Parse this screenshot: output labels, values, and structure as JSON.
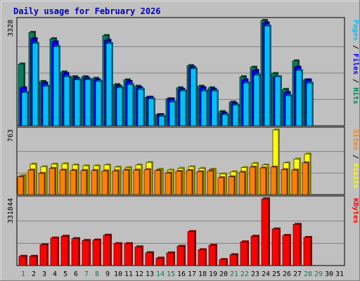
{
  "title": "Daily usage for February 2026",
  "days": [
    "1",
    "2",
    "3",
    "4",
    "5",
    "6",
    "7",
    "8",
    "9",
    "10",
    "11",
    "12",
    "13",
    "14",
    "15",
    "16",
    "17",
    "18",
    "19",
    "20",
    "21",
    "22",
    "23",
    "24",
    "25",
    "26",
    "27",
    "28",
    "29",
    "30",
    "31"
  ],
  "weekend_days": [
    1,
    7,
    8,
    14,
    15,
    21,
    22,
    28,
    29
  ],
  "colors": {
    "hits": "#00805C",
    "files": "#0000FF",
    "pages": "#00C0FF",
    "visits": "#FFFF00",
    "sites": "#FF8000",
    "kbytes": "#FF0000",
    "title": "#0000C0",
    "weekend": "#00805C",
    "weekday": "#000000"
  },
  "chart_data": [
    {
      "type": "bar",
      "title": "Pages / Files / Hits",
      "ymax_label": "3328",
      "ylim": [
        0,
        3328
      ],
      "categories": [
        "1",
        "2",
        "3",
        "4",
        "5",
        "6",
        "7",
        "8",
        "9",
        "10",
        "11",
        "12",
        "13",
        "14",
        "15",
        "16",
        "17",
        "18",
        "19",
        "20",
        "21",
        "22",
        "23",
        "24",
        "25",
        "26",
        "27",
        "28",
        "29",
        "30",
        "31"
      ],
      "series": [
        {
          "name": "Hits",
          "values": [
            1950,
            2950,
            1400,
            2750,
            1700,
            1550,
            1550,
            1500,
            2850,
            1300,
            1450,
            1250,
            900,
            350,
            850,
            1200,
            1900,
            1250,
            1200,
            450,
            750,
            1550,
            1850,
            3328,
            1650,
            1150,
            2050,
            1450,
            null,
            null,
            null
          ]
        },
        {
          "name": "Files",
          "values": [
            1200,
            2750,
            1350,
            2650,
            1650,
            1500,
            1500,
            1450,
            2700,
            1250,
            1400,
            1200,
            900,
            350,
            850,
            1150,
            1850,
            1200,
            1150,
            400,
            700,
            1450,
            1750,
            3250,
            1550,
            1050,
            1850,
            1450,
            null,
            null,
            null
          ]
        },
        {
          "name": "Pages",
          "values": [
            1050,
            2600,
            1250,
            2500,
            1550,
            1450,
            1450,
            1400,
            2600,
            1200,
            1300,
            1150,
            850,
            300,
            750,
            1100,
            1800,
            1100,
            1100,
            350,
            650,
            1350,
            1600,
            3150,
            1550,
            950,
            1750,
            1350,
            null,
            null,
            null
          ]
        }
      ]
    },
    {
      "type": "bar",
      "title": "Sites / Visits",
      "ymax_label": "763",
      "ylim": [
        0,
        763
      ],
      "categories": [
        "1",
        "2",
        "3",
        "4",
        "5",
        "6",
        "7",
        "8",
        "9",
        "10",
        "11",
        "12",
        "13",
        "14",
        "15",
        "16",
        "17",
        "18",
        "19",
        "20",
        "21",
        "22",
        "23",
        "24",
        "25",
        "26",
        "27",
        "28",
        "29",
        "30",
        "31"
      ],
      "series": [
        {
          "name": "Visits",
          "values": [
            225,
            360,
            330,
            360,
            365,
            350,
            340,
            340,
            350,
            325,
            320,
            350,
            380,
            300,
            290,
            310,
            330,
            310,
            300,
            245,
            270,
            320,
            370,
            350,
            763,
            375,
            420,
            480,
            null,
            null,
            null
          ]
        },
        {
          "name": "Sites",
          "values": [
            210,
            290,
            250,
            310,
            290,
            285,
            285,
            285,
            280,
            280,
            290,
            290,
            295,
            285,
            255,
            275,
            285,
            270,
            280,
            200,
            210,
            265,
            325,
            315,
            325,
            295,
            290,
            375,
            null,
            null,
            null
          ]
        }
      ]
    },
    {
      "type": "bar",
      "title": "KBytes",
      "ymax_label": "331844",
      "ylim": [
        0,
        331844
      ],
      "categories": [
        "1",
        "2",
        "3",
        "4",
        "5",
        "6",
        "7",
        "8",
        "9",
        "10",
        "11",
        "12",
        "13",
        "14",
        "15",
        "16",
        "17",
        "18",
        "19",
        "20",
        "21",
        "22",
        "23",
        "24",
        "25",
        "26",
        "27",
        "28",
        "29",
        "30",
        "31"
      ],
      "series": [
        {
          "name": "KBytes",
          "values": [
            46000,
            46000,
            104000,
            137000,
            146000,
            134000,
            125000,
            127000,
            151000,
            109000,
            109000,
            93000,
            64000,
            37000,
            63000,
            96000,
            169000,
            79000,
            101000,
            30000,
            54000,
            118000,
            146000,
            331844,
            182000,
            150000,
            205000,
            140000,
            null,
            null,
            null
          ]
        }
      ]
    }
  ]
}
